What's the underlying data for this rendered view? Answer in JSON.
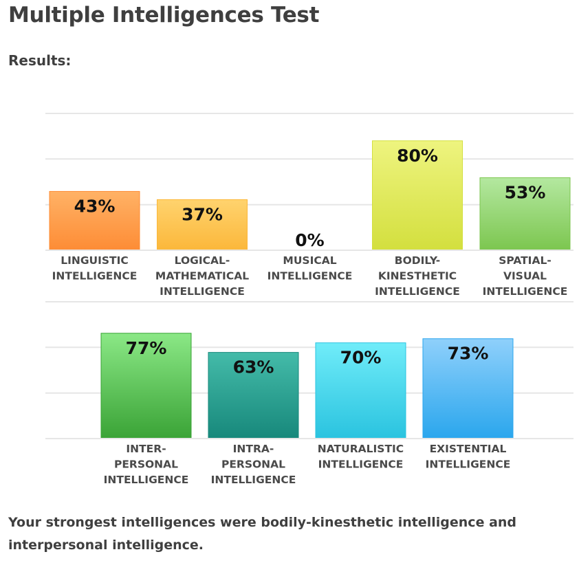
{
  "page": {
    "title": "Multiple Intelligences Test",
    "results_label": "Results:",
    "summary": "Your strongest intelligences were bodily-kinesthetic intelligence and interpersonal intelligence."
  },
  "chart_data": [
    {
      "type": "bar",
      "title": "",
      "xlabel": "",
      "ylabel": "",
      "ylim": [
        0,
        100
      ],
      "grid": true,
      "unit": "%",
      "categories": [
        [
          "LINGUISTIC",
          "INTELLIGENCE"
        ],
        [
          "LOGICAL-",
          "MATHEMATICAL",
          "INTELLIGENCE"
        ],
        [
          "MUSICAL",
          "INTELLIGENCE"
        ],
        [
          "BODILY-",
          "KINESTHETIC",
          "INTELLIGENCE"
        ],
        [
          "SPATIAL-",
          "VISUAL",
          "INTELLIGENCE"
        ]
      ],
      "values": [
        43,
        37,
        0,
        80,
        53
      ],
      "value_labels": [
        "43%",
        "37%",
        "0%",
        "80%",
        "53%"
      ],
      "colors": [
        [
          "#ffb266",
          "#fd8c35"
        ],
        [
          "#ffd36e",
          "#fbb73a"
        ],
        [
          "#cccccc",
          "#aaaaaa"
        ],
        [
          "#eef47f",
          "#d3df3e"
        ],
        [
          "#b4e8a0",
          "#7cc64f"
        ]
      ]
    },
    {
      "type": "bar",
      "title": "",
      "xlabel": "",
      "ylabel": "",
      "ylim": [
        0,
        100
      ],
      "grid": true,
      "unit": "%",
      "categories": [
        [
          "INTER-",
          "PERSONAL",
          "INTELLIGENCE"
        ],
        [
          "INTRA-",
          "PERSONAL",
          "INTELLIGENCE"
        ],
        [
          "NATURALISTIC",
          "INTELLIGENCE"
        ],
        [
          "EXISTENTIAL",
          "INTELLIGENCE"
        ]
      ],
      "values": [
        77,
        63,
        70,
        73
      ],
      "value_labels": [
        "77%",
        "63%",
        "70%",
        "73%"
      ],
      "colors": [
        [
          "#8be886",
          "#3aa336"
        ],
        [
          "#44bba9",
          "#17887b"
        ],
        [
          "#70ecf9",
          "#2ac3df"
        ],
        [
          "#8fd0fb",
          "#2aa6ed"
        ]
      ]
    }
  ]
}
